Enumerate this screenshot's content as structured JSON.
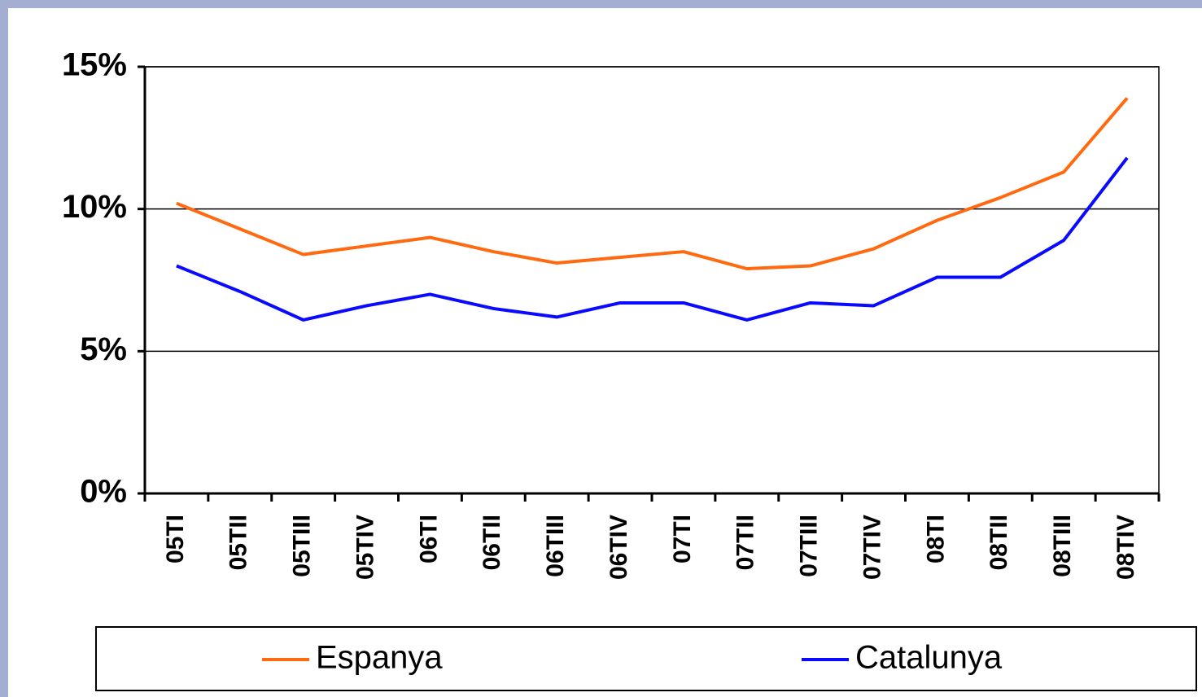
{
  "chart_data": {
    "type": "line",
    "categories": [
      "05TI",
      "05TII",
      "05TIII",
      "05TIV",
      "06TI",
      "06TII",
      "06TIII",
      "06TIV",
      "07TI",
      "07TII",
      "07TIII",
      "07TIV",
      "08TI",
      "08TII",
      "08TIII",
      "08TIV"
    ],
    "series": [
      {
        "name": "Espanya",
        "color": "#ff6a10",
        "values": [
          10.2,
          9.3,
          8.4,
          8.7,
          9.0,
          8.5,
          8.1,
          8.3,
          8.5,
          7.9,
          8.0,
          8.6,
          9.6,
          10.4,
          11.3,
          13.9
        ]
      },
      {
        "name": "Catalunya",
        "color": "#0a0aff",
        "values": [
          8.0,
          7.1,
          6.1,
          6.6,
          7.0,
          6.5,
          6.2,
          6.7,
          6.7,
          6.1,
          6.7,
          6.6,
          7.6,
          7.6,
          8.9,
          11.8
        ]
      }
    ],
    "ylim": [
      0,
      15
    ],
    "yticks": [
      {
        "value": 0,
        "label": "0%"
      },
      {
        "value": 5,
        "label": "5%"
      },
      {
        "value": 10,
        "label": "10%"
      },
      {
        "value": 15,
        "label": "15%"
      }
    ],
    "grid": true
  }
}
